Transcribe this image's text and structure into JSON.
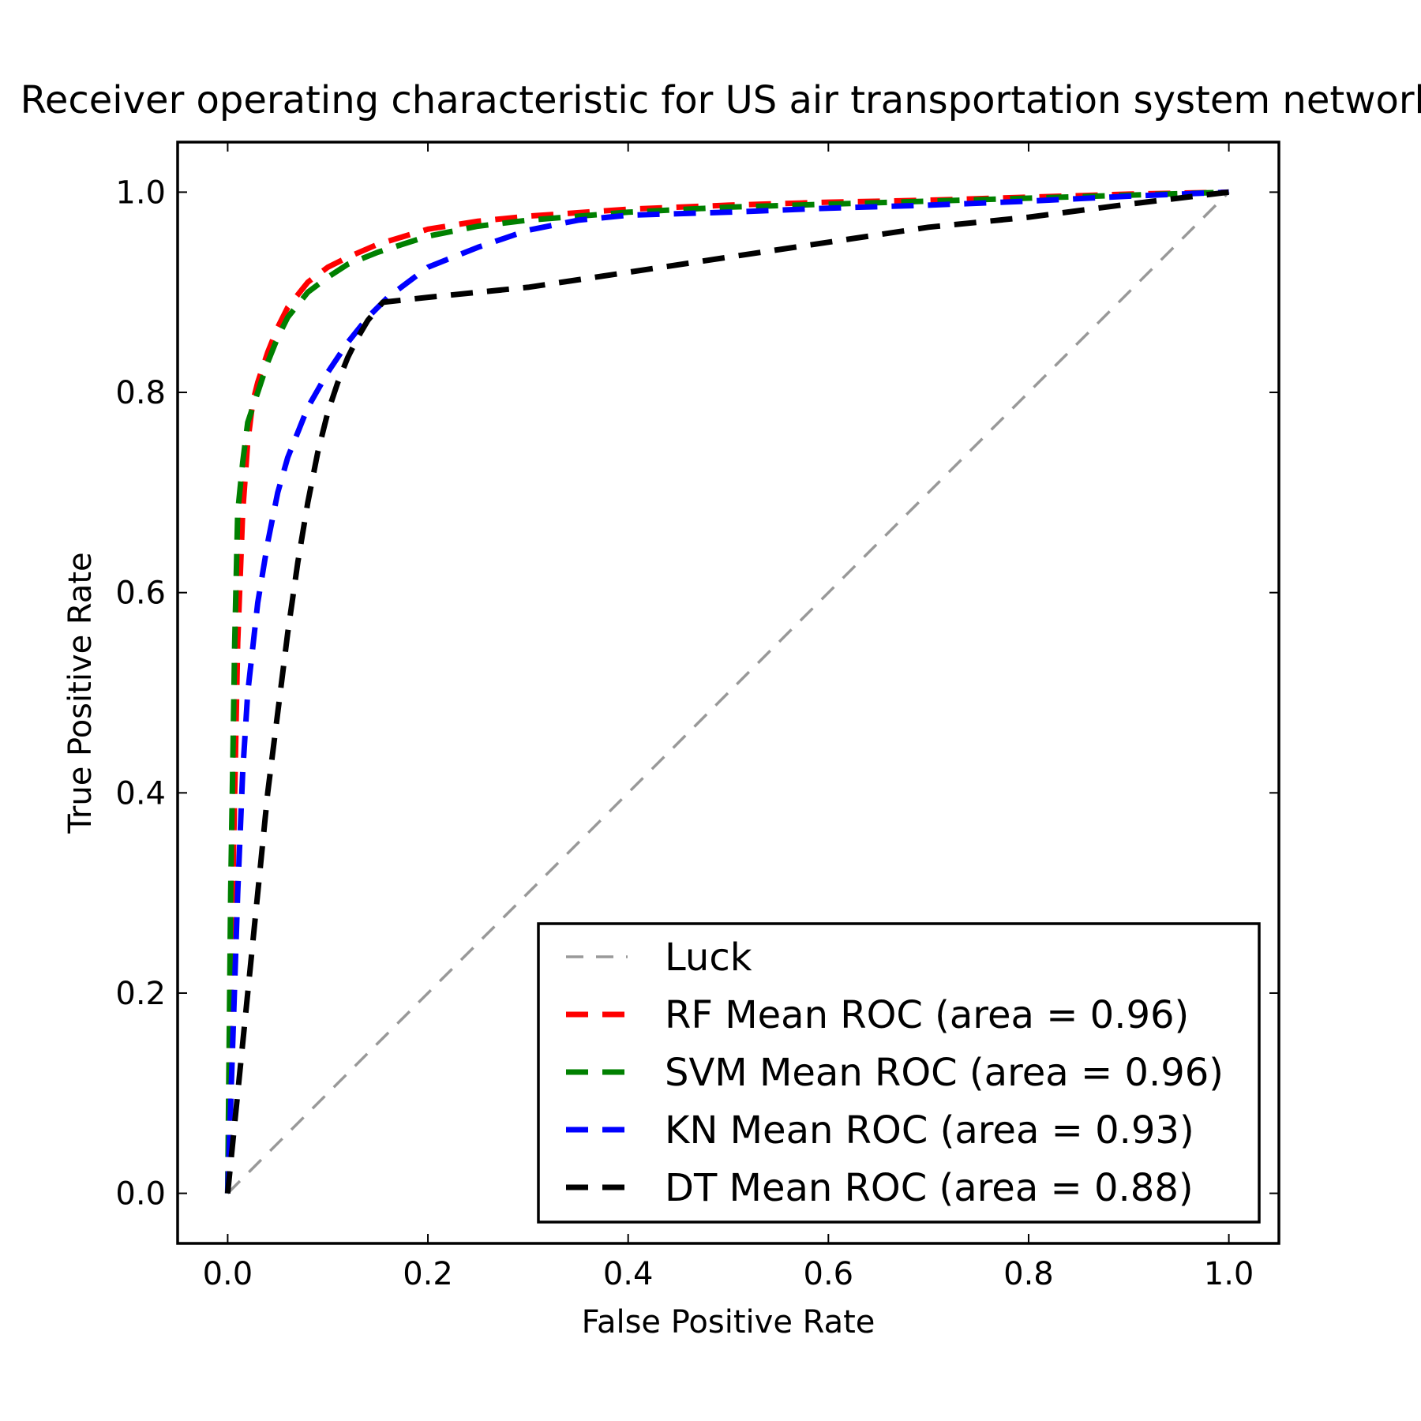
{
  "chart_data": {
    "type": "line",
    "title": "Receiver operating characteristic for US air transportation system network",
    "xlabel": "False Positive Rate",
    "ylabel": "True Positive Rate",
    "xlim": [
      -0.05,
      1.05
    ],
    "ylim": [
      -0.05,
      1.05
    ],
    "xticks": [
      0.0,
      0.2,
      0.4,
      0.6,
      0.8,
      1.0
    ],
    "yticks": [
      0.0,
      0.2,
      0.4,
      0.6,
      0.8,
      1.0
    ],
    "xtick_labels": [
      "0.0",
      "0.2",
      "0.4",
      "0.6",
      "0.8",
      "1.0"
    ],
    "ytick_labels": [
      "0.0",
      "0.2",
      "0.4",
      "0.6",
      "0.8",
      "1.0"
    ],
    "grid": false,
    "legend_position": "lower-right",
    "series": [
      {
        "name": "Luck",
        "color": "#999999",
        "style": "dashed",
        "x": [
          0.0,
          1.0
        ],
        "y": [
          0.0,
          1.0
        ]
      },
      {
        "name": "RF Mean ROC (area = 0.96)",
        "color": "#ff0000",
        "style": "dashed",
        "x": [
          0.0,
          0.005,
          0.01,
          0.015,
          0.02,
          0.025,
          0.03,
          0.04,
          0.05,
          0.06,
          0.08,
          0.1,
          0.12,
          0.15,
          0.2,
          0.25,
          0.3,
          0.4,
          0.5,
          0.6,
          0.7,
          0.8,
          0.9,
          1.0
        ],
        "y": [
          0.0,
          0.3,
          0.55,
          0.68,
          0.75,
          0.79,
          0.81,
          0.84,
          0.865,
          0.885,
          0.91,
          0.925,
          0.935,
          0.948,
          0.963,
          0.971,
          0.976,
          0.983,
          0.987,
          0.99,
          0.992,
          0.995,
          0.998,
          1.0
        ]
      },
      {
        "name": "SVM Mean ROC (area = 0.96)",
        "color": "#008000",
        "style": "dashed",
        "x": [
          0.0,
          0.003,
          0.007,
          0.01,
          0.015,
          0.02,
          0.03,
          0.04,
          0.05,
          0.06,
          0.08,
          0.1,
          0.12,
          0.15,
          0.2,
          0.25,
          0.3,
          0.4,
          0.5,
          0.6,
          0.7,
          0.8,
          0.9,
          1.0
        ],
        "y": [
          0.0,
          0.3,
          0.55,
          0.68,
          0.73,
          0.77,
          0.8,
          0.83,
          0.855,
          0.875,
          0.9,
          0.915,
          0.928,
          0.94,
          0.956,
          0.966,
          0.972,
          0.98,
          0.985,
          0.988,
          0.991,
          0.994,
          0.997,
          1.0
        ]
      },
      {
        "name": "KN Mean ROC (area = 0.93)",
        "color": "#0000ff",
        "style": "dashed",
        "x": [
          0.0,
          0.005,
          0.01,
          0.015,
          0.02,
          0.03,
          0.04,
          0.05,
          0.06,
          0.07,
          0.08,
          0.1,
          0.12,
          0.14,
          0.16,
          0.2,
          0.25,
          0.3,
          0.35,
          0.4,
          0.5,
          0.6,
          0.7,
          0.8,
          0.9,
          1.0
        ],
        "y": [
          0.0,
          0.15,
          0.3,
          0.42,
          0.5,
          0.59,
          0.65,
          0.7,
          0.735,
          0.76,
          0.785,
          0.82,
          0.85,
          0.875,
          0.895,
          0.925,
          0.945,
          0.962,
          0.972,
          0.977,
          0.98,
          0.984,
          0.987,
          0.991,
          0.996,
          1.0
        ]
      },
      {
        "name": "DT Mean ROC (area = 0.88)",
        "color": "#000000",
        "style": "dashed",
        "x": [
          0.0,
          0.01,
          0.02,
          0.03,
          0.04,
          0.05,
          0.06,
          0.07,
          0.08,
          0.09,
          0.1,
          0.11,
          0.12,
          0.13,
          0.14,
          0.155,
          0.2,
          0.3,
          0.4,
          0.5,
          0.6,
          0.7,
          0.8,
          0.9,
          1.0
        ],
        "y": [
          0.0,
          0.1,
          0.2,
          0.3,
          0.4,
          0.48,
          0.56,
          0.63,
          0.69,
          0.74,
          0.78,
          0.81,
          0.835,
          0.855,
          0.872,
          0.89,
          0.895,
          0.905,
          0.92,
          0.935,
          0.95,
          0.965,
          0.975,
          0.988,
          1.0
        ]
      }
    ]
  }
}
